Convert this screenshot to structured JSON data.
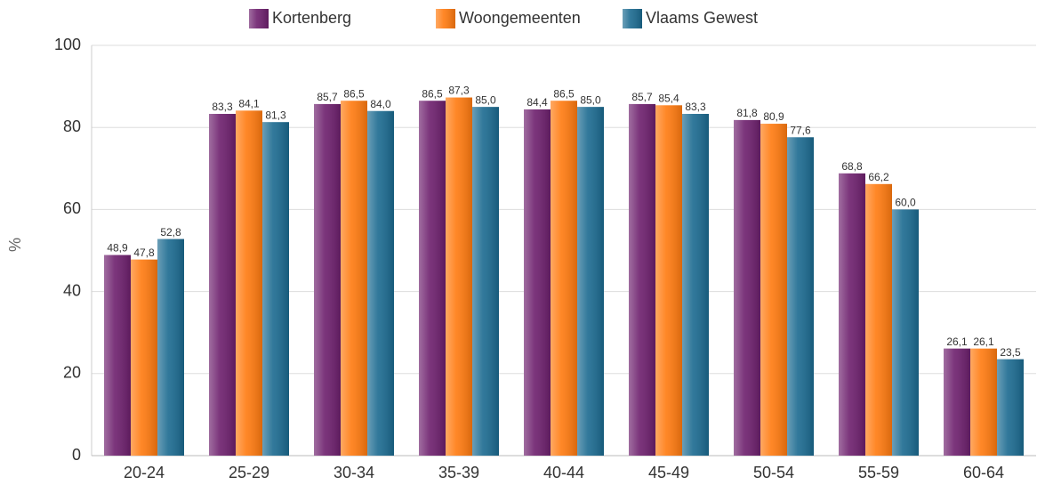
{
  "chart_data": {
    "type": "bar",
    "y_label": "%",
    "categories": [
      "20-24",
      "25-29",
      "30-34",
      "35-39",
      "40-44",
      "45-49",
      "50-54",
      "55-59",
      "60-64"
    ],
    "series": [
      {
        "name": "Kortenberg",
        "color": "#6d1f6d",
        "values": [
          48.9,
          83.3,
          85.7,
          86.5,
          84.4,
          85.7,
          81.8,
          68.8,
          26.1
        ],
        "value_labels": [
          "48,9",
          "83,3",
          "85,7",
          "86,5",
          "84,4",
          "85,7",
          "81,8",
          "68,8",
          "26,1"
        ]
      },
      {
        "name": "Woongemeenten",
        "color": "#ff7a0f",
        "values": [
          47.8,
          84.1,
          86.5,
          87.3,
          86.5,
          85.4,
          80.9,
          66.2,
          26.1
        ],
        "value_labels": [
          "47,8",
          "84,1",
          "86,5",
          "87,3",
          "86,5",
          "85,4",
          "80,9",
          "66,2",
          "26,1"
        ]
      },
      {
        "name": "Vlaams Gewest",
        "color": "#1b6a90",
        "values": [
          52.8,
          81.3,
          84.0,
          85.0,
          85.0,
          83.3,
          77.6,
          60.0,
          23.5
        ],
        "value_labels": [
          "52,8",
          "81,3",
          "84,0",
          "85,0",
          "85,0",
          "83,3",
          "77,6",
          "60,0",
          "23,5"
        ]
      }
    ],
    "ylim": [
      0,
      100
    ],
    "yticks": [
      0,
      20,
      40,
      60,
      80,
      100
    ],
    "grid": true,
    "legend": "top"
  }
}
